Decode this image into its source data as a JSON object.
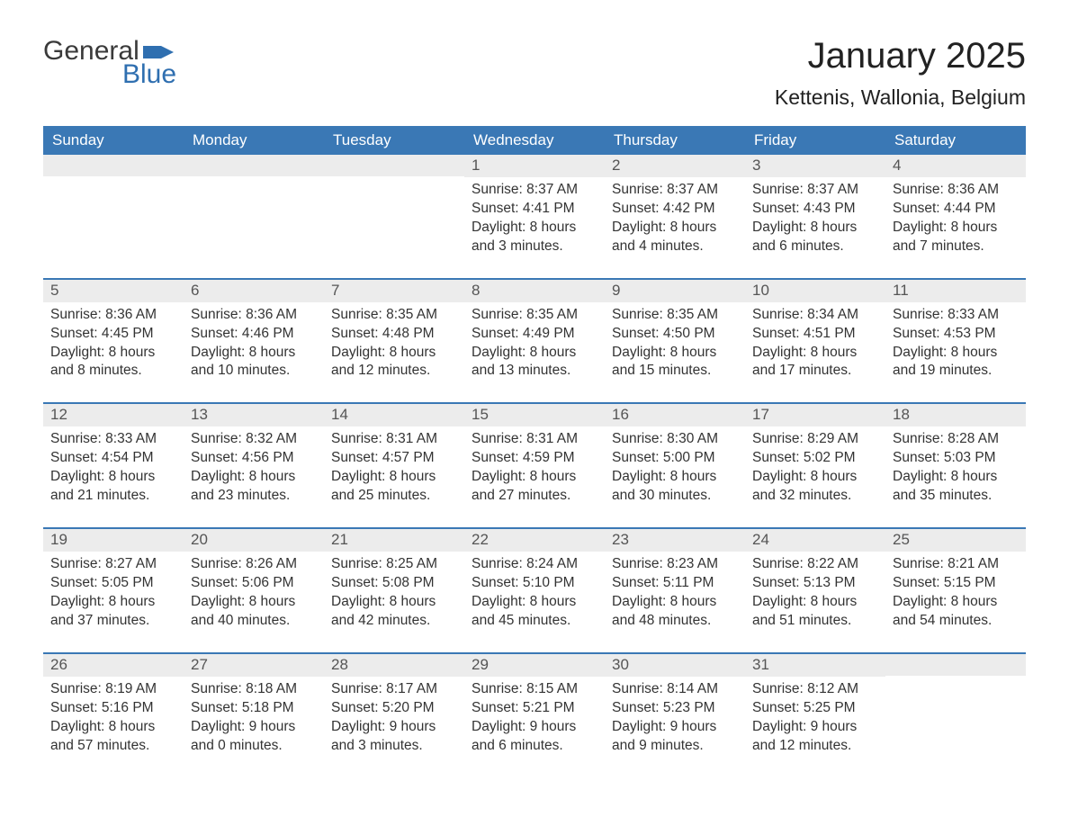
{
  "logo": {
    "word1": "General",
    "word2": "Blue",
    "flag_color": "#2f6fb0"
  },
  "title": "January 2025",
  "location": "Kettenis, Wallonia, Belgium",
  "colors": {
    "header_bg": "#3a78b5",
    "header_text": "#ffffff",
    "daynum_bg": "#ececec",
    "week_border": "#3a78b5",
    "body_text": "#333333",
    "page_bg": "#ffffff"
  },
  "day_headers": [
    "Sunday",
    "Monday",
    "Tuesday",
    "Wednesday",
    "Thursday",
    "Friday",
    "Saturday"
  ],
  "weeks": [
    [
      {
        "empty": true
      },
      {
        "empty": true
      },
      {
        "empty": true
      },
      {
        "day": "1",
        "sunrise": "Sunrise: 8:37 AM",
        "sunset": "Sunset: 4:41 PM",
        "daylight1": "Daylight: 8 hours",
        "daylight2": "and 3 minutes."
      },
      {
        "day": "2",
        "sunrise": "Sunrise: 8:37 AM",
        "sunset": "Sunset: 4:42 PM",
        "daylight1": "Daylight: 8 hours",
        "daylight2": "and 4 minutes."
      },
      {
        "day": "3",
        "sunrise": "Sunrise: 8:37 AM",
        "sunset": "Sunset: 4:43 PM",
        "daylight1": "Daylight: 8 hours",
        "daylight2": "and 6 minutes."
      },
      {
        "day": "4",
        "sunrise": "Sunrise: 8:36 AM",
        "sunset": "Sunset: 4:44 PM",
        "daylight1": "Daylight: 8 hours",
        "daylight2": "and 7 minutes."
      }
    ],
    [
      {
        "day": "5",
        "sunrise": "Sunrise: 8:36 AM",
        "sunset": "Sunset: 4:45 PM",
        "daylight1": "Daylight: 8 hours",
        "daylight2": "and 8 minutes."
      },
      {
        "day": "6",
        "sunrise": "Sunrise: 8:36 AM",
        "sunset": "Sunset: 4:46 PM",
        "daylight1": "Daylight: 8 hours",
        "daylight2": "and 10 minutes."
      },
      {
        "day": "7",
        "sunrise": "Sunrise: 8:35 AM",
        "sunset": "Sunset: 4:48 PM",
        "daylight1": "Daylight: 8 hours",
        "daylight2": "and 12 minutes."
      },
      {
        "day": "8",
        "sunrise": "Sunrise: 8:35 AM",
        "sunset": "Sunset: 4:49 PM",
        "daylight1": "Daylight: 8 hours",
        "daylight2": "and 13 minutes."
      },
      {
        "day": "9",
        "sunrise": "Sunrise: 8:35 AM",
        "sunset": "Sunset: 4:50 PM",
        "daylight1": "Daylight: 8 hours",
        "daylight2": "and 15 minutes."
      },
      {
        "day": "10",
        "sunrise": "Sunrise: 8:34 AM",
        "sunset": "Sunset: 4:51 PM",
        "daylight1": "Daylight: 8 hours",
        "daylight2": "and 17 minutes."
      },
      {
        "day": "11",
        "sunrise": "Sunrise: 8:33 AM",
        "sunset": "Sunset: 4:53 PM",
        "daylight1": "Daylight: 8 hours",
        "daylight2": "and 19 minutes."
      }
    ],
    [
      {
        "day": "12",
        "sunrise": "Sunrise: 8:33 AM",
        "sunset": "Sunset: 4:54 PM",
        "daylight1": "Daylight: 8 hours",
        "daylight2": "and 21 minutes."
      },
      {
        "day": "13",
        "sunrise": "Sunrise: 8:32 AM",
        "sunset": "Sunset: 4:56 PM",
        "daylight1": "Daylight: 8 hours",
        "daylight2": "and 23 minutes."
      },
      {
        "day": "14",
        "sunrise": "Sunrise: 8:31 AM",
        "sunset": "Sunset: 4:57 PM",
        "daylight1": "Daylight: 8 hours",
        "daylight2": "and 25 minutes."
      },
      {
        "day": "15",
        "sunrise": "Sunrise: 8:31 AM",
        "sunset": "Sunset: 4:59 PM",
        "daylight1": "Daylight: 8 hours",
        "daylight2": "and 27 minutes."
      },
      {
        "day": "16",
        "sunrise": "Sunrise: 8:30 AM",
        "sunset": "Sunset: 5:00 PM",
        "daylight1": "Daylight: 8 hours",
        "daylight2": "and 30 minutes."
      },
      {
        "day": "17",
        "sunrise": "Sunrise: 8:29 AM",
        "sunset": "Sunset: 5:02 PM",
        "daylight1": "Daylight: 8 hours",
        "daylight2": "and 32 minutes."
      },
      {
        "day": "18",
        "sunrise": "Sunrise: 8:28 AM",
        "sunset": "Sunset: 5:03 PM",
        "daylight1": "Daylight: 8 hours",
        "daylight2": "and 35 minutes."
      }
    ],
    [
      {
        "day": "19",
        "sunrise": "Sunrise: 8:27 AM",
        "sunset": "Sunset: 5:05 PM",
        "daylight1": "Daylight: 8 hours",
        "daylight2": "and 37 minutes."
      },
      {
        "day": "20",
        "sunrise": "Sunrise: 8:26 AM",
        "sunset": "Sunset: 5:06 PM",
        "daylight1": "Daylight: 8 hours",
        "daylight2": "and 40 minutes."
      },
      {
        "day": "21",
        "sunrise": "Sunrise: 8:25 AM",
        "sunset": "Sunset: 5:08 PM",
        "daylight1": "Daylight: 8 hours",
        "daylight2": "and 42 minutes."
      },
      {
        "day": "22",
        "sunrise": "Sunrise: 8:24 AM",
        "sunset": "Sunset: 5:10 PM",
        "daylight1": "Daylight: 8 hours",
        "daylight2": "and 45 minutes."
      },
      {
        "day": "23",
        "sunrise": "Sunrise: 8:23 AM",
        "sunset": "Sunset: 5:11 PM",
        "daylight1": "Daylight: 8 hours",
        "daylight2": "and 48 minutes."
      },
      {
        "day": "24",
        "sunrise": "Sunrise: 8:22 AM",
        "sunset": "Sunset: 5:13 PM",
        "daylight1": "Daylight: 8 hours",
        "daylight2": "and 51 minutes."
      },
      {
        "day": "25",
        "sunrise": "Sunrise: 8:21 AM",
        "sunset": "Sunset: 5:15 PM",
        "daylight1": "Daylight: 8 hours",
        "daylight2": "and 54 minutes."
      }
    ],
    [
      {
        "day": "26",
        "sunrise": "Sunrise: 8:19 AM",
        "sunset": "Sunset: 5:16 PM",
        "daylight1": "Daylight: 8 hours",
        "daylight2": "and 57 minutes."
      },
      {
        "day": "27",
        "sunrise": "Sunrise: 8:18 AM",
        "sunset": "Sunset: 5:18 PM",
        "daylight1": "Daylight: 9 hours",
        "daylight2": "and 0 minutes."
      },
      {
        "day": "28",
        "sunrise": "Sunrise: 8:17 AM",
        "sunset": "Sunset: 5:20 PM",
        "daylight1": "Daylight: 9 hours",
        "daylight2": "and 3 minutes."
      },
      {
        "day": "29",
        "sunrise": "Sunrise: 8:15 AM",
        "sunset": "Sunset: 5:21 PM",
        "daylight1": "Daylight: 9 hours",
        "daylight2": "and 6 minutes."
      },
      {
        "day": "30",
        "sunrise": "Sunrise: 8:14 AM",
        "sunset": "Sunset: 5:23 PM",
        "daylight1": "Daylight: 9 hours",
        "daylight2": "and 9 minutes."
      },
      {
        "day": "31",
        "sunrise": "Sunrise: 8:12 AM",
        "sunset": "Sunset: 5:25 PM",
        "daylight1": "Daylight: 9 hours",
        "daylight2": "and 12 minutes."
      },
      {
        "empty": true
      }
    ]
  ]
}
